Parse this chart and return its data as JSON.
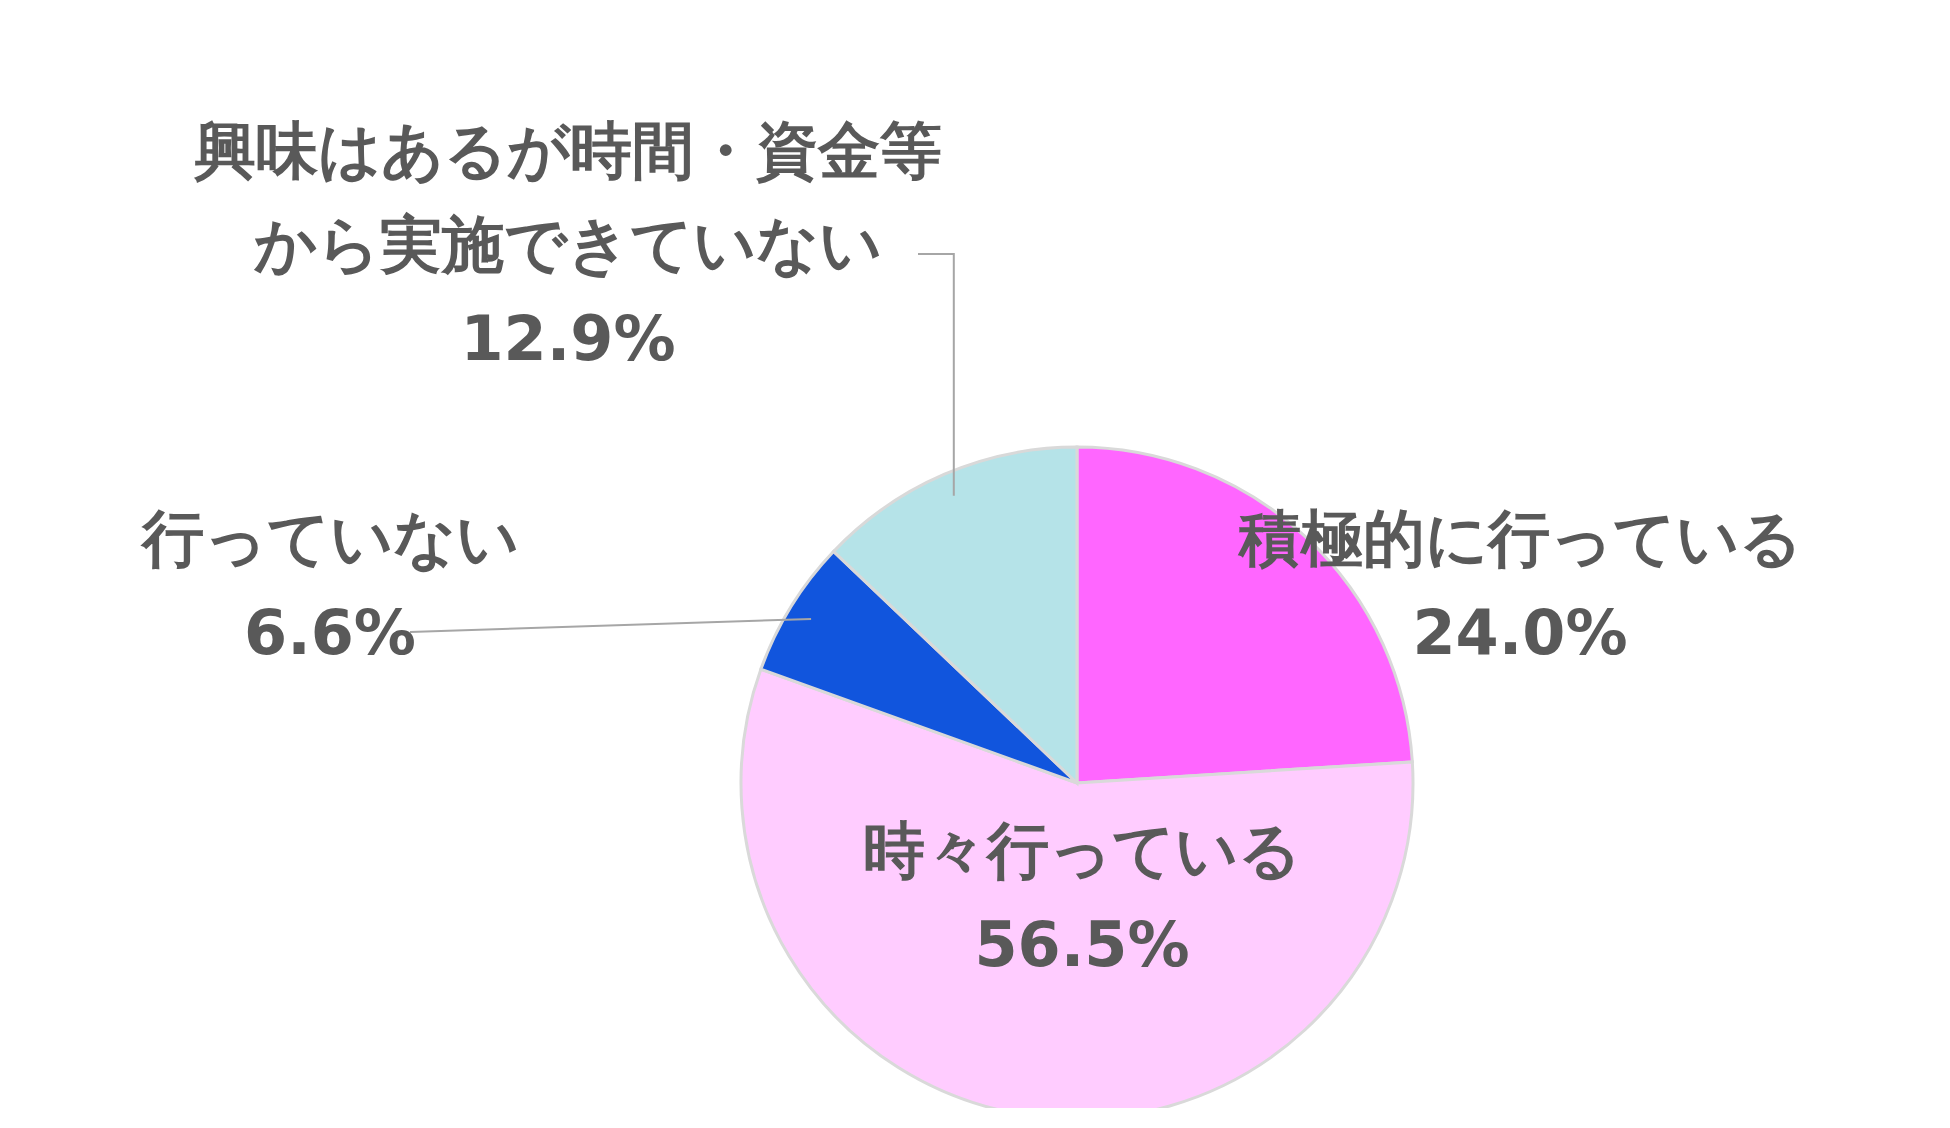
{
  "chart_data": {
    "type": "pie",
    "categories": [
      "積極的に行っている",
      "時々行っている",
      "行っていない",
      "興味はあるが時間・資金等から実施できていない"
    ],
    "values": [
      24.0,
      56.5,
      6.6,
      12.9
    ],
    "value_labels": [
      "24.0%",
      "56.5%",
      "6.6%",
      "12.9%"
    ],
    "colors": [
      "#ff66ff",
      "#ffccff",
      "#1155dd",
      "#b5e3e8"
    ]
  }
}
